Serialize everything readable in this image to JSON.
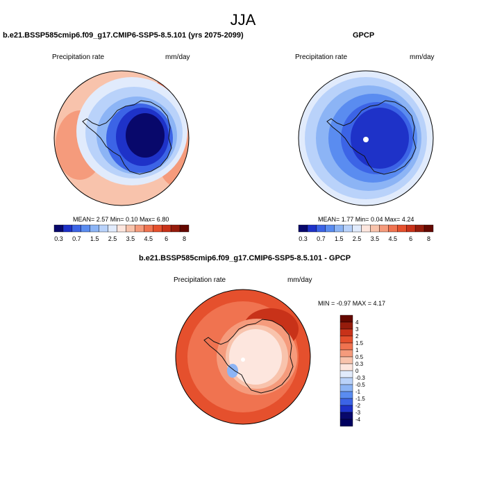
{
  "title": "JJA",
  "panels": [
    {
      "title": "b.e21.BSSP585cmip6.f09_g17.CMIP6-SSP5-8.5.101 (yrs 2075-2099)",
      "left_label": "Precipitation rate",
      "right_label": "mm/day",
      "stats": "MEAN=   2.57   Min=   0.10   Max=    6.80"
    },
    {
      "title": "GPCP",
      "left_label": "Precipitation rate",
      "right_label": "mm/day",
      "stats": "MEAN=   1.77   Min=   0.04   Max=   4.24"
    },
    {
      "title": "b.e21.BSSP585cmip6.f09_g17.CMIP6-SSP5-8.5.101 - GPCP",
      "left_label": "Precipitation rate",
      "right_label": "mm/day",
      "stats": "MIN =   -0.97 MAX =    4.17"
    }
  ],
  "chart_data": [
    {
      "type": "heatmap",
      "projection": "south polar stereographic",
      "title": "b.e21.BSSP585cmip6.f09_g17.CMIP6-SSP5-8.5.101 (yrs 2075-2099)",
      "units": "mm/day",
      "mean": 2.57,
      "min": 0.1,
      "max": 6.8,
      "colorbar_levels": [
        0.3,
        0.5,
        0.7,
        1,
        1.5,
        2,
        2.5,
        3,
        3.5,
        4,
        4.5,
        5,
        6,
        7,
        8
      ],
      "colorbar_tick_labels": [
        "0.3",
        "0.7",
        "1.5",
        "2.5",
        "3.5",
        "4.5",
        "6",
        "8"
      ]
    },
    {
      "type": "heatmap",
      "projection": "south polar stereographic",
      "title": "GPCP",
      "units": "mm/day",
      "mean": 1.77,
      "min": 0.04,
      "max": 4.24,
      "colorbar_levels": [
        0.3,
        0.5,
        0.7,
        1,
        1.5,
        2,
        2.5,
        3,
        3.5,
        4,
        4.5,
        5,
        6,
        7,
        8
      ],
      "colorbar_tick_labels": [
        "0.3",
        "0.7",
        "1.5",
        "2.5",
        "3.5",
        "4.5",
        "6",
        "8"
      ]
    },
    {
      "type": "heatmap",
      "projection": "south polar stereographic",
      "title": "b.e21.BSSP585cmip6.f09_g17.CMIP6-SSP5-8.5.101 - GPCP",
      "units": "mm/day",
      "min": -0.97,
      "max": 4.17,
      "colorbar_levels": [
        -4,
        -3,
        -2,
        -1.5,
        -1,
        -0.5,
        -0.3,
        0,
        0.3,
        0.5,
        1,
        1.5,
        2,
        3,
        4
      ],
      "colorbar_tick_labels": [
        "4",
        "3",
        "2",
        "1.5",
        "1",
        "0.5",
        "0.3",
        "0",
        "-0.3",
        "-0.5",
        "-1",
        "-1.5",
        "-2",
        "-3",
        "-4"
      ]
    }
  ],
  "colors": {
    "abs_palette": [
      "#08086b",
      "#1e32c8",
      "#3c64e6",
      "#5a8cf0",
      "#8cb4f5",
      "#b9d2fa",
      "#e1ebfc",
      "#fde6de",
      "#f8c3ac",
      "#f59b7c",
      "#f07350",
      "#e5502d",
      "#c83219",
      "#961c0c",
      "#640800"
    ],
    "diff_palette": [
      "#640800",
      "#961c0c",
      "#c83219",
      "#e5502d",
      "#f07350",
      "#f59b7c",
      "#f8c3ac",
      "#fde6de",
      "#e1ebfc",
      "#b9d2fa",
      "#8cb4f5",
      "#5a8cf0",
      "#3c64e6",
      "#1e32c8",
      "#08086b",
      "#000060"
    ]
  }
}
